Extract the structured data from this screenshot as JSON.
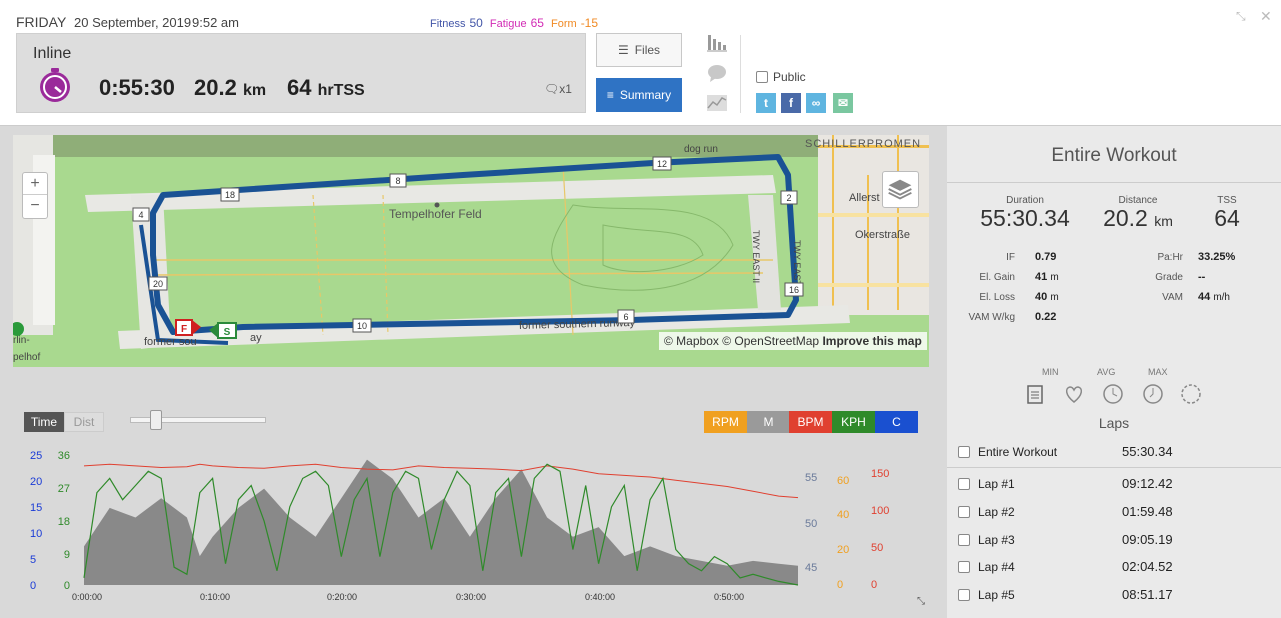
{
  "header": {
    "day": "FRIDAY",
    "date": "20 September, 2019",
    "time": "9:52 am",
    "fitness_label": "Fitness",
    "fitness_value": "50",
    "fatigue_label": "Fatigue",
    "fatigue_value": "65",
    "form_label": "Form",
    "form_value": "-15"
  },
  "summary": {
    "sport": "Inline",
    "duration": "0:55:30",
    "distance_value": "20.2",
    "distance_unit": "km",
    "tss_value": "64",
    "tss_unit": "hrTSS",
    "comments": "x1"
  },
  "buttons": {
    "files": "Files",
    "summary": "Summary",
    "public": "Public"
  },
  "colors": {
    "accent": "#2f73c4",
    "route": "#1a5294",
    "rpm": "#f0a020",
    "bpm": "#e04030",
    "kph": "#2f8a2a",
    "cadence_blue": "#1a3bd6"
  },
  "map": {
    "labels": {
      "park": "Tempelhofer Feld",
      "street_south": "former southern runway",
      "street_sw": "former sou",
      "dog_run": "dog run",
      "schiller": "SCHILLERPROMEN",
      "allerstr": "Allerst",
      "okerstr": "Okerstraße",
      "twy": "TWY EAST II",
      "twy2": "TWY EAST I",
      "left_edge": "rlin-",
      "left_edge2": "pelhof",
      "ay": "ay"
    },
    "markers": [
      "2",
      "4",
      "6",
      "8",
      "10",
      "12",
      "16",
      "18",
      "20"
    ],
    "finish_flag": "F",
    "start_flag": "S",
    "attribution_mapbox": "© Mapbox",
    "attribution_osm": "© OpenStreetMap",
    "attribution_improve": "Improve this map",
    "zoom_in": "+",
    "zoom_out": "−"
  },
  "workout_panel": {
    "title": "Entire Workout",
    "duration_label": "Duration",
    "duration_value": "55:30.34",
    "distance_label": "Distance",
    "distance_value": "20.2",
    "distance_unit": "km",
    "tss_label": "TSS",
    "tss_value": "64",
    "if_label": "IF",
    "if_value": "0.79",
    "elgain_label": "El. Gain",
    "elgain_value": "41",
    "elgain_unit": "m",
    "elloss_label": "El. Loss",
    "elloss_value": "40",
    "elloss_unit": "m",
    "vamwkg_label": "VAM W/kg",
    "vamwkg_value": "0.22",
    "pahr_label": "Pa:Hr",
    "pahr_value": "33.25%",
    "grade_label": "Grade",
    "grade_value": "--",
    "vam_label": "VAM",
    "vam_value": "44",
    "vam_unit": "m/h",
    "min_label": "MIN",
    "avg_label": "AVG",
    "max_label": "MAX",
    "laps_title": "Laps",
    "laps": [
      {
        "name": "Entire Workout",
        "time": "55:30.34"
      },
      {
        "name": "Lap #1",
        "time": "09:12.42"
      },
      {
        "name": "Lap #2",
        "time": "01:59.48"
      },
      {
        "name": "Lap #3",
        "time": "09:05.19"
      },
      {
        "name": "Lap #4",
        "time": "02:04.52"
      },
      {
        "name": "Lap #5",
        "time": "08:51.17"
      }
    ]
  },
  "chart_controls": {
    "time": "Time",
    "dist": "Dist",
    "channels": [
      "RPM",
      "M",
      "BPM",
      "KPH",
      "C"
    ]
  },
  "chart_data": {
    "type": "line",
    "x_ticks": [
      "0:00:00",
      "0:10:00",
      "0:20:00",
      "0:30:00",
      "0:40:00",
      "0:50:00"
    ],
    "x_range_min": [
      0,
      55.5
    ],
    "axes": {
      "c_blue": {
        "ticks": [
          "25",
          "20",
          "15",
          "10",
          "5",
          "0"
        ]
      },
      "kph": {
        "ticks": [
          "36",
          "27",
          "18",
          "9",
          "0"
        ]
      },
      "elevation": {
        "ticks": [
          "55",
          "50",
          "45"
        ]
      },
      "rpm": {
        "ticks": [
          "60",
          "40",
          "20",
          "0"
        ]
      },
      "bpm": {
        "ticks": [
          "150",
          "100",
          "50",
          "0"
        ]
      }
    },
    "series": [
      {
        "name": "BPM",
        "x": [
          0,
          2,
          4,
          6,
          8,
          9,
          10,
          12,
          14,
          16,
          18,
          20,
          22,
          24,
          26,
          28,
          30,
          32,
          34,
          36,
          38,
          40,
          42,
          44,
          46,
          48,
          50,
          52,
          54,
          55.5
        ],
        "values": [
          150,
          152,
          150,
          148,
          149,
          152,
          150,
          148,
          147,
          150,
          152,
          148,
          146,
          145,
          150,
          148,
          147,
          146,
          144,
          150,
          146,
          140,
          138,
          136,
          132,
          128,
          124,
          118,
          112,
          110
        ]
      },
      {
        "name": "KPH",
        "x": [
          0,
          1,
          2,
          3,
          4,
          5,
          6,
          7,
          8,
          9,
          10,
          11,
          12,
          13,
          14,
          15,
          16,
          17,
          18,
          19,
          20,
          21,
          22,
          23,
          24,
          25,
          26,
          27,
          28,
          29,
          30,
          31,
          32,
          33,
          34,
          35,
          36,
          37,
          38,
          39,
          40,
          41,
          42,
          43,
          44,
          45,
          46,
          47,
          48,
          49,
          50,
          51,
          52,
          53,
          54,
          55.5
        ],
        "values": [
          2,
          26,
          30,
          24,
          28,
          32,
          30,
          5,
          3,
          26,
          30,
          6,
          24,
          28,
          18,
          4,
          22,
          30,
          32,
          28,
          8,
          24,
          30,
          8,
          26,
          32,
          30,
          10,
          24,
          32,
          28,
          4,
          26,
          30,
          8,
          30,
          34,
          32,
          10,
          28,
          6,
          22,
          28,
          4,
          24,
          30,
          10,
          6,
          4,
          8,
          6,
          2,
          3,
          2,
          1,
          0
        ]
      },
      {
        "name": "Elevation",
        "x": [
          0,
          2,
          4,
          6,
          8,
          9,
          10,
          12,
          14,
          16,
          18,
          20,
          22,
          24,
          26,
          28,
          30,
          32,
          34,
          36,
          38,
          40,
          42,
          44,
          46,
          48,
          50,
          52,
          54,
          55.5
        ],
        "values": [
          47,
          51,
          50,
          52,
          50,
          46,
          48,
          51,
          53,
          50,
          48,
          52,
          56,
          54,
          50,
          52,
          48,
          52,
          55,
          50,
          48,
          49,
          46,
          47,
          46,
          45.5,
          45,
          45.5,
          45.2,
          45
        ]
      }
    ]
  }
}
